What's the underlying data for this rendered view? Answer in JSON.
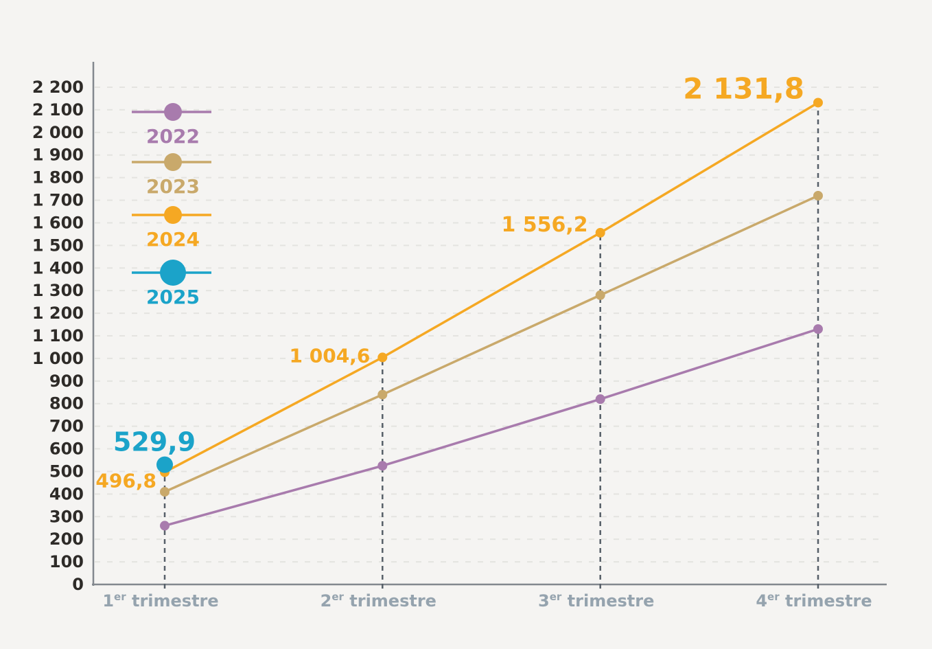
{
  "page": {
    "background": "#f5f4f2"
  },
  "chart_data": {
    "type": "line",
    "title": "",
    "xlabel": "",
    "ylabel": "",
    "ylim": [
      0,
      2200
    ],
    "ytick_step": 100,
    "ytick_labels": [
      "0",
      "100",
      "200",
      "300",
      "400",
      "500",
      "600",
      "700",
      "800",
      "900",
      "1 000",
      "1 100",
      "1 200",
      "1 300",
      "1 400",
      "1 500",
      "1 600",
      "1 700",
      "1 800",
      "1 900",
      "2 000",
      "2 100",
      "2 200"
    ],
    "grid": "horizontal-dashed",
    "legend_position": "top-left",
    "categories": [
      {
        "base": "1",
        "sup": "er",
        "rest": " trimestre"
      },
      {
        "base": "2",
        "sup": "er",
        "rest": " trimestre"
      },
      {
        "base": "3",
        "sup": "er",
        "rest": " trimestre"
      },
      {
        "base": "4",
        "sup": "er",
        "rest": " trimestre"
      }
    ],
    "series": [
      {
        "name": "2022",
        "color": "#a87bad",
        "values": [
          260,
          525,
          820,
          1130
        ],
        "point_labels": [
          null,
          null,
          null,
          null
        ],
        "marker_radius": 7,
        "legend_marker_radius": 13
      },
      {
        "name": "2023",
        "color": "#c9a96b",
        "values": [
          410,
          840,
          1280,
          1720
        ],
        "point_labels": [
          null,
          null,
          null,
          null
        ],
        "marker_radius": 7,
        "legend_marker_radius": 13
      },
      {
        "name": "2024",
        "color": "#f5a823",
        "values": [
          496.8,
          1004.6,
          1556.2,
          2131.8
        ],
        "point_labels": [
          "496,8",
          "1 004,6",
          "1 556,2",
          "2 131,8"
        ],
        "marker_radius": 7,
        "legend_marker_radius": 13
      },
      {
        "name": "2025",
        "color": "#1ba3c9",
        "values": [
          529.9,
          null,
          null,
          null
        ],
        "point_labels": [
          "529,9",
          null,
          null,
          null
        ],
        "marker_radius": 12,
        "legend_marker_radius": 19
      }
    ],
    "colors": {
      "axis": "#83888e",
      "gridline": "#e4e3e0",
      "dropline": "#565f68",
      "ytick_text": "#2e2b28",
      "xtick_text": "#95a3ae"
    }
  }
}
